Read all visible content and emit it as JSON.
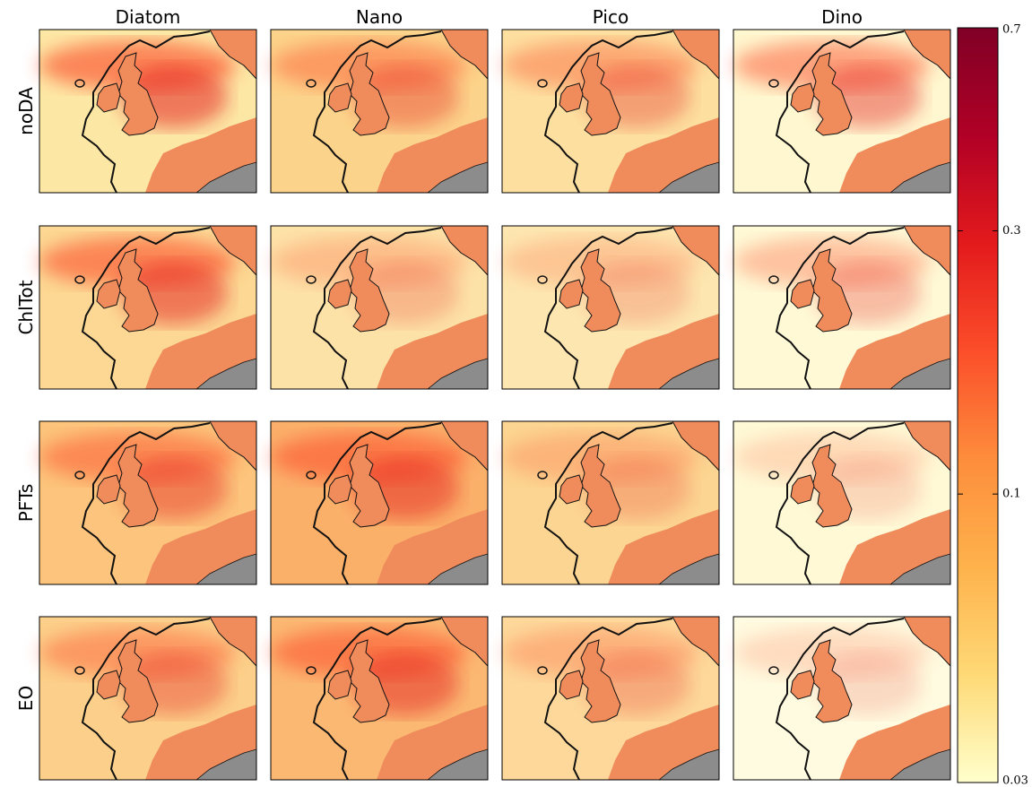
{
  "columns": [
    "Diatom",
    "Nano",
    "Pico",
    "Dino"
  ],
  "rows": [
    "noDA",
    "ChlTot",
    "PFTs",
    "EO"
  ],
  "colorbar": {
    "clim": [
      0.03,
      0.7
    ],
    "ticks": [
      0.03,
      0.1,
      0.3,
      0.7
    ],
    "log_scale": true,
    "colormap": [
      "#ffffcc",
      "#fed976",
      "#feb24c",
      "#fd8d3c",
      "#fc4e2a",
      "#e31a1c",
      "#b10026",
      "#800026"
    ]
  }
}
